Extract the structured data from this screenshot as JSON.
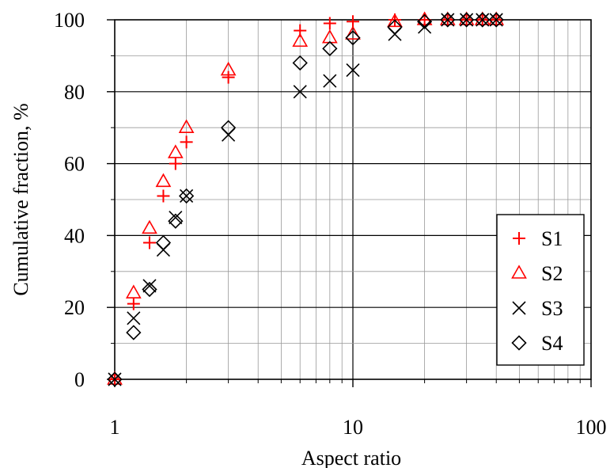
{
  "chart_data": {
    "type": "scatter",
    "xscale": "log",
    "xlim": [
      1,
      100
    ],
    "ylim": [
      0,
      100
    ],
    "xlabel": "Aspect ratio",
    "ylabel": "Cumulative fraction, %",
    "xticks": [
      1,
      10,
      100
    ],
    "xtick_labels": [
      "1",
      "10",
      "100"
    ],
    "yticks": [
      0,
      20,
      40,
      60,
      80,
      100
    ],
    "ytick_labels": [
      "0",
      "20",
      "40",
      "60",
      "80",
      "100"
    ],
    "grid": true,
    "legend_position": "bottom-right",
    "series": [
      {
        "name": "S1",
        "marker": "plus",
        "color": "#ff0000",
        "x": [
          1,
          1.2,
          1.4,
          1.6,
          1.8,
          2,
          3,
          6,
          8,
          10,
          15,
          20,
          25,
          30,
          35,
          40
        ],
        "y": [
          0,
          21,
          38,
          51,
          60,
          66,
          84,
          97,
          99,
          99.5,
          100,
          100,
          100,
          100,
          100,
          100
        ]
      },
      {
        "name": "S2",
        "marker": "triangle",
        "color": "#ff0000",
        "x": [
          1,
          1.2,
          1.4,
          1.6,
          1.8,
          2,
          3,
          6,
          8,
          10,
          15,
          20,
          25,
          30,
          35,
          40
        ],
        "y": [
          0,
          24,
          42,
          55,
          63,
          70,
          86,
          94,
          95,
          96,
          99.5,
          100,
          100,
          100,
          100,
          100
        ]
      },
      {
        "name": "S3",
        "marker": "cross",
        "color": "#000000",
        "x": [
          1,
          1.2,
          1.4,
          1.6,
          1.8,
          2,
          3,
          6,
          8,
          10,
          15,
          20,
          25,
          30,
          35,
          40
        ],
        "y": [
          0,
          17,
          26,
          36,
          45,
          51,
          68,
          80,
          83,
          86,
          96,
          98,
          100,
          100,
          100,
          100
        ]
      },
      {
        "name": "S4",
        "marker": "diamond",
        "color": "#000000",
        "x": [
          1,
          1.2,
          1.4,
          1.6,
          1.8,
          2,
          3,
          6,
          8,
          10,
          15,
          20,
          25,
          30,
          35,
          40
        ],
        "y": [
          0,
          13,
          25,
          38,
          44,
          51,
          70,
          88,
          92,
          95,
          98,
          99.5,
          100,
          100,
          100,
          100
        ]
      }
    ]
  }
}
